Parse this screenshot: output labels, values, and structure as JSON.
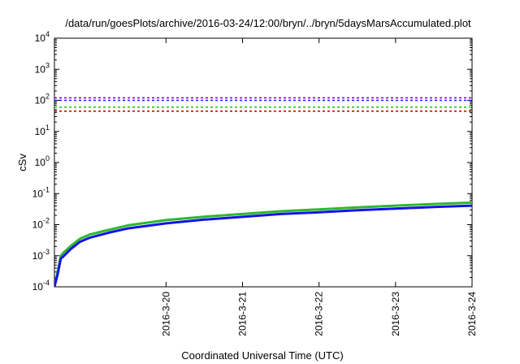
{
  "chart_data": {
    "type": "line",
    "title": "/data/run/goesPlots/archive/2016-03-24/12:00/bryn/../bryn/5daysMarsAccumulated.plot",
    "xlabel": "Coordinated Universal Time (UTC)",
    "ylabel": "cSv",
    "yscale": "log",
    "ylim": [
      0.0001,
      10000
    ],
    "xlim": [
      "2016-03-19T01:00",
      "2016-03-24T12:00"
    ],
    "grid": false,
    "x_ticks": [
      "2016-3-20",
      "2016-3-21",
      "2016-3-22",
      "2016-3-23",
      "2016-3-24"
    ],
    "y_ticks": [
      {
        "base": "10",
        "exp": "-4"
      },
      {
        "base": "10",
        "exp": "-3"
      },
      {
        "base": "10",
        "exp": "-2"
      },
      {
        "base": "10",
        "exp": "-1"
      },
      {
        "base": "10",
        "exp": "0"
      },
      {
        "base": "10",
        "exp": "1"
      },
      {
        "base": "10",
        "exp": "2"
      },
      {
        "base": "10",
        "exp": "3"
      },
      {
        "base": "10",
        "exp": "4"
      }
    ],
    "reference_lines": [
      {
        "color": "#8b00d0",
        "value": 120,
        "style": "dashed"
      },
      {
        "color": "#1a1aff",
        "value": 100,
        "style": "dashed"
      },
      {
        "color": "#22cc22",
        "value": 60,
        "style": "dashed"
      },
      {
        "color": "#e00000",
        "value": 45,
        "style": "dashed"
      }
    ],
    "series": [
      {
        "color": "#2db82d",
        "x": [
          "2016-03-19T01:00",
          "2016-03-19T02:00",
          "2016-03-19T03:00",
          "2016-03-19T04:00",
          "2016-03-19T06:00",
          "2016-03-19T09:00",
          "2016-03-19T12:00",
          "2016-03-19T18:00",
          "2016-03-20T00:00",
          "2016-03-20T12:00",
          "2016-03-21T00:00",
          "2016-03-21T12:00",
          "2016-03-22T00:00",
          "2016-03-22T12:00",
          "2016-03-23T00:00",
          "2016-03-23T12:00",
          "2016-03-24T00:00",
          "2016-03-24T12:00"
        ],
        "values": [
          0.0001,
          0.0003,
          0.001,
          0.0013,
          0.002,
          0.0035,
          0.0048,
          0.0068,
          0.0095,
          0.014,
          0.018,
          0.022,
          0.027,
          0.031,
          0.036,
          0.041,
          0.046,
          0.051
        ]
      },
      {
        "color": "#1414e6",
        "x": [
          "2016-03-19T01:00",
          "2016-03-19T02:00",
          "2016-03-19T03:00",
          "2016-03-19T04:00",
          "2016-03-19T06:00",
          "2016-03-19T09:00",
          "2016-03-19T12:00",
          "2016-03-19T18:00",
          "2016-03-20T00:00",
          "2016-03-20T12:00",
          "2016-03-21T00:00",
          "2016-03-21T12:00",
          "2016-03-22T00:00",
          "2016-03-22T12:00",
          "2016-03-23T00:00",
          "2016-03-23T12:00",
          "2016-03-24T00:00",
          "2016-03-24T12:00"
        ],
        "values": [
          0.0001,
          0.00025,
          0.0008,
          0.001,
          0.0016,
          0.0028,
          0.0038,
          0.0055,
          0.0076,
          0.011,
          0.0145,
          0.0178,
          0.022,
          0.025,
          0.029,
          0.033,
          0.037,
          0.041
        ]
      }
    ]
  }
}
